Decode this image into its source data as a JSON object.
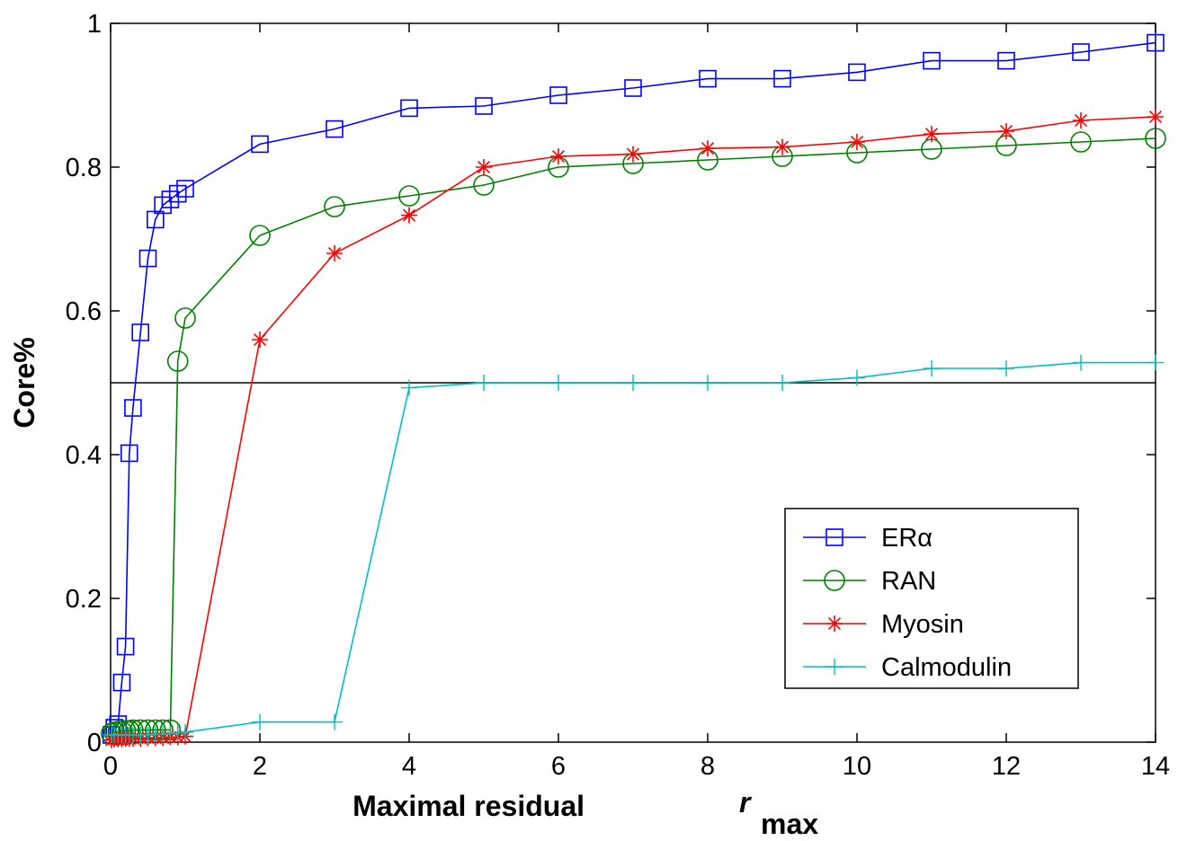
{
  "chart_data": {
    "type": "line",
    "xlabel": "Maximal residual",
    "xlabel_symbol": "r",
    "xlabel_subscript": "max",
    "ylabel": "Core%",
    "xlim": [
      0,
      14
    ],
    "ylim": [
      0,
      1
    ],
    "xticks": [
      "0",
      "2",
      "4",
      "6",
      "8",
      "10",
      "12",
      "14"
    ],
    "yticks": [
      "0",
      "0.2",
      "0.4",
      "0.6",
      "0.8",
      "1"
    ],
    "grid": false,
    "legend_position": "bottom-right",
    "reference_line": {
      "y": 0.5,
      "color": "#000000"
    },
    "series": [
      {
        "name": "ERα",
        "color": "#0000ff",
        "marker": "square",
        "x": [
          0.01,
          0.05,
          0.1,
          0.15,
          0.2,
          0.25,
          0.3,
          0.4,
          0.5,
          0.6,
          0.7,
          0.8,
          0.9,
          1,
          2,
          3,
          4,
          5,
          6,
          7,
          8,
          9,
          10,
          11,
          12,
          13,
          14
        ],
        "y": [
          0.01,
          0.02,
          0.025,
          0.083,
          0.133,
          0.402,
          0.465,
          0.57,
          0.673,
          0.727,
          0.747,
          0.755,
          0.763,
          0.77,
          0.832,
          0.853,
          0.882,
          0.885,
          0.9,
          0.91,
          0.923,
          0.923,
          0.932,
          0.948,
          0.948,
          0.96,
          0.973
        ]
      },
      {
        "name": "RAN",
        "color": "#008000",
        "marker": "circle",
        "x": [
          0.01,
          0.05,
          0.1,
          0.15,
          0.2,
          0.25,
          0.3,
          0.4,
          0.5,
          0.6,
          0.7,
          0.8,
          0.9,
          1,
          2,
          3,
          4,
          5,
          6,
          7,
          8,
          9,
          10,
          11,
          12,
          13,
          14
        ],
        "y": [
          0.012,
          0.014,
          0.015,
          0.015,
          0.016,
          0.016,
          0.017,
          0.017,
          0.017,
          0.017,
          0.017,
          0.017,
          0.53,
          0.59,
          0.705,
          0.745,
          0.76,
          0.775,
          0.8,
          0.805,
          0.81,
          0.815,
          0.82,
          0.825,
          0.83,
          0.835,
          0.84
        ]
      },
      {
        "name": "Myosin",
        "color": "#ff0000",
        "marker": "star",
        "x": [
          0.01,
          0.05,
          0.1,
          0.15,
          0.2,
          0.25,
          0.3,
          0.4,
          0.5,
          0.6,
          0.7,
          0.8,
          0.9,
          1,
          2,
          3,
          4,
          5,
          6,
          7,
          8,
          9,
          10,
          11,
          12,
          13,
          14
        ],
        "y": [
          0.003,
          0.004,
          0.004,
          0.004,
          0.005,
          0.005,
          0.005,
          0.005,
          0.006,
          0.006,
          0.006,
          0.007,
          0.007,
          0.008,
          0.56,
          0.68,
          0.733,
          0.8,
          0.815,
          0.818,
          0.826,
          0.828,
          0.835,
          0.846,
          0.85,
          0.865,
          0.87
        ]
      },
      {
        "name": "Calmodulin",
        "color": "#00bfbf",
        "marker": "plus",
        "x": [
          0.01,
          0.05,
          0.1,
          0.15,
          0.2,
          0.25,
          0.3,
          0.4,
          0.5,
          0.6,
          0.7,
          0.8,
          0.9,
          1,
          2,
          3,
          4,
          5,
          6,
          7,
          8,
          9,
          10,
          11,
          12,
          13,
          14
        ],
        "y": [
          0.01,
          0.01,
          0.01,
          0.01,
          0.01,
          0.01,
          0.01,
          0.01,
          0.01,
          0.011,
          0.011,
          0.012,
          0.013,
          0.014,
          0.028,
          0.028,
          0.493,
          0.5,
          0.5,
          0.5,
          0.5,
          0.5,
          0.507,
          0.52,
          0.52,
          0.528,
          0.528
        ]
      }
    ]
  }
}
